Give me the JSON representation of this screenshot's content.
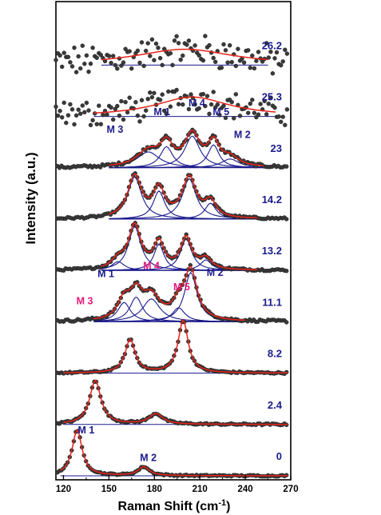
{
  "chart_data": {
    "type": "line",
    "xlabel": "Raman Shift",
    "xlabel_unit": "(cm",
    "xlabel_unit_sup": "-1",
    "xlabel_unit_close": ")",
    "ylabel": "Intensity (a.u.)",
    "xlim": [
      115,
      270
    ],
    "xticks": [
      "120",
      "150",
      "180",
      "210",
      "240",
      "270"
    ],
    "xtick_values": [
      120,
      150,
      180,
      210,
      240,
      270
    ],
    "grid": false,
    "colors": {
      "points": "#3a3a3a",
      "fit": "#e8231b",
      "components": "#1a1a8c",
      "pressure_label": "#1a1a8c",
      "mode_label": "#1a1a8c",
      "mode_label_alt": "#e8187a"
    },
    "series": [
      {
        "name": "26.2",
        "fit_range": [
          145,
          255
        ],
        "baseline": 0,
        "peaks": [
          {
            "x": 200,
            "h": 0.9,
            "w": 80
          }
        ],
        "noise": 0.35,
        "components": []
      },
      {
        "name": "25.3",
        "fit_range": [
          140,
          260
        ],
        "baseline": 0,
        "peaks": [
          {
            "x": 205,
            "h": 1.1,
            "w": 60
          }
        ],
        "noise": 0.28,
        "components": []
      },
      {
        "name": "23",
        "fit_range": [
          150,
          252
        ],
        "baseline": 0,
        "peaks": [
          {
            "x": 176,
            "h": 0.9,
            "w": 18
          },
          {
            "x": 188,
            "h": 1.2,
            "w": 10
          },
          {
            "x": 205,
            "h": 1.8,
            "w": 12
          },
          {
            "x": 219,
            "h": 1.3,
            "w": 9
          },
          {
            "x": 230,
            "h": 0.5,
            "w": 14
          }
        ],
        "noise": 0.08,
        "components": [
          "M 3",
          "M 1",
          "M 4",
          "M 5",
          "M 2"
        ],
        "labels": [
          {
            "text": "M 3",
            "x": 154,
            "y": 2.0
          },
          {
            "text": "M 1",
            "x": 185,
            "y": 3.0
          },
          {
            "text": "M 4",
            "x": 208,
            "y": 3.5
          },
          {
            "text": "M 5",
            "x": 224,
            "y": 3.0
          },
          {
            "text": "M 2",
            "x": 238,
            "y": 1.7
          }
        ]
      },
      {
        "name": "14.2",
        "fit_range": [
          150,
          248
        ],
        "baseline": 0,
        "peaks": [
          {
            "x": 167,
            "h": 2.4,
            "w": 11
          },
          {
            "x": 183,
            "h": 1.6,
            "w": 9
          },
          {
            "x": 203,
            "h": 2.3,
            "w": 11
          },
          {
            "x": 217,
            "h": 0.9,
            "w": 9
          }
        ],
        "noise": 0.06,
        "components": [
          "c1",
          "c2",
          "c3",
          "c4"
        ]
      },
      {
        "name": "13.2",
        "fit_range": [
          145,
          248
        ],
        "baseline": 0,
        "peaks": [
          {
            "x": 156,
            "h": 0.5,
            "w": 10
          },
          {
            "x": 167,
            "h": 2.5,
            "w": 10
          },
          {
            "x": 183,
            "h": 1.5,
            "w": 8
          },
          {
            "x": 201,
            "h": 1.8,
            "w": 9
          },
          {
            "x": 214,
            "h": 0.6,
            "w": 9
          }
        ],
        "noise": 0.06,
        "components": [
          "c1",
          "c2",
          "c3",
          "c4",
          "c5"
        ]
      },
      {
        "name": "11.1",
        "fit_range": [
          140,
          240
        ],
        "baseline": 0,
        "peaks": [
          {
            "x": 160,
            "h": 1.1,
            "w": 10
          },
          {
            "x": 168,
            "h": 1.4,
            "w": 10
          },
          {
            "x": 178,
            "h": 1.3,
            "w": 14
          },
          {
            "x": 196,
            "h": 0.8,
            "w": 10
          },
          {
            "x": 204,
            "h": 2.8,
            "w": 10
          }
        ],
        "noise": 0.07,
        "components": [
          "c1",
          "c2",
          "c3",
          "c4",
          "c5"
        ],
        "labels": [
          {
            "text": "M 1",
            "x": 148,
            "y": 2.55,
            "color": "mode_label"
          },
          {
            "text": "M 4",
            "x": 178,
            "y": 3.0,
            "color": "mode_label_alt"
          },
          {
            "text": "M 5",
            "x": 198,
            "y": 1.8,
            "color": "mode_label_alt"
          },
          {
            "text": "M 2",
            "x": 220,
            "y": 2.6,
            "color": "mode_label"
          },
          {
            "text": "M 3",
            "x": 134,
            "y": 1.0,
            "color": "mode_label_alt"
          }
        ]
      },
      {
        "name": "8.2",
        "fit_range": [
          120,
          268
        ],
        "baseline": 0,
        "peaks": [
          {
            "x": 164,
            "h": 1.9,
            "w": 8
          },
          {
            "x": 199,
            "h": 3.0,
            "w": 8
          }
        ],
        "noise": 0.05,
        "components": []
      },
      {
        "name": "2.4",
        "fit_range": [
          120,
          268
        ],
        "baseline": 0,
        "peaks": [
          {
            "x": 141,
            "h": 2.5,
            "w": 9
          },
          {
            "x": 181,
            "h": 0.6,
            "w": 11
          }
        ],
        "noise": 0.05,
        "components": []
      },
      {
        "name": "0",
        "fit_range": [
          118,
          268
        ],
        "baseline": 0,
        "peaks": [
          {
            "x": 129,
            "h": 2.6,
            "w": 8
          },
          {
            "x": 173,
            "h": 0.5,
            "w": 9
          }
        ],
        "noise": 0.04,
        "components": [],
        "labels": [
          {
            "text": "M 1",
            "x": 135,
            "y": 2.4,
            "color": "mode_label"
          },
          {
            "text": "M 2",
            "x": 176,
            "y": 0.85,
            "color": "mode_label"
          }
        ]
      }
    ]
  }
}
